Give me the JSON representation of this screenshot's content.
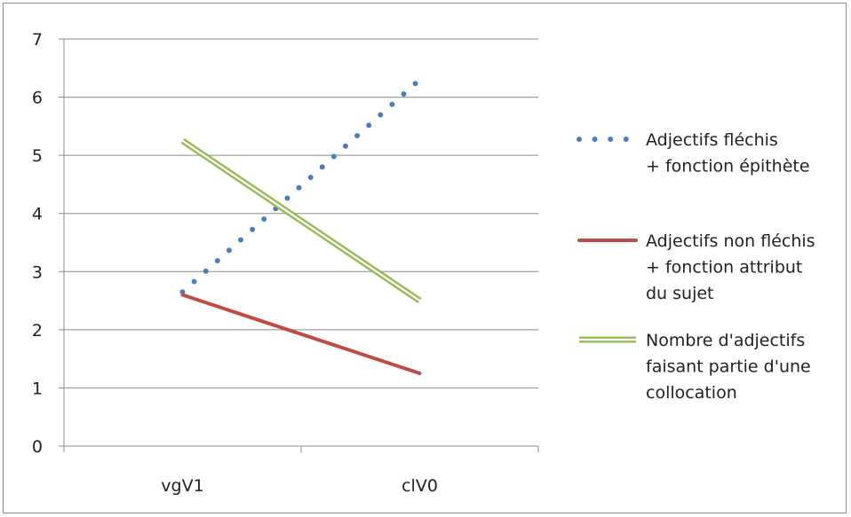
{
  "chart_data": {
    "type": "line",
    "title": "",
    "xlabel": "",
    "ylabel": "",
    "categories": [
      "vgV1",
      "clV0"
    ],
    "ylim": [
      0,
      7
    ],
    "yticks": [
      "0",
      "1",
      "2",
      "3",
      "4",
      "5",
      "6",
      "7"
    ],
    "grid": true,
    "legend_position": "right",
    "series": [
      {
        "name": "Adjectifs fléchis + fonction épithète",
        "legend_lines": [
          "Adjectifs fléchis",
          "+ fonction épithète"
        ],
        "values": [
          2.65,
          6.3
        ],
        "color": "#4a7ebb",
        "style": "dotted"
      },
      {
        "name": "Adjectifs non fléchis + fonction attribut du sujet",
        "legend_lines": [
          "Adjectifs non fléchis",
          "+ fonction attribut",
          "du sujet"
        ],
        "values": [
          2.6,
          1.25
        ],
        "color": "#be4b48",
        "style": "solid"
      },
      {
        "name": "Nombre d'adjectifs faisant partie d'une collocation",
        "legend_lines": [
          "Nombre d'adjectifs",
          "faisant partie d'une",
          "collocation"
        ],
        "values": [
          5.25,
          2.5
        ],
        "color": "#98b954",
        "style": "double"
      }
    ]
  }
}
